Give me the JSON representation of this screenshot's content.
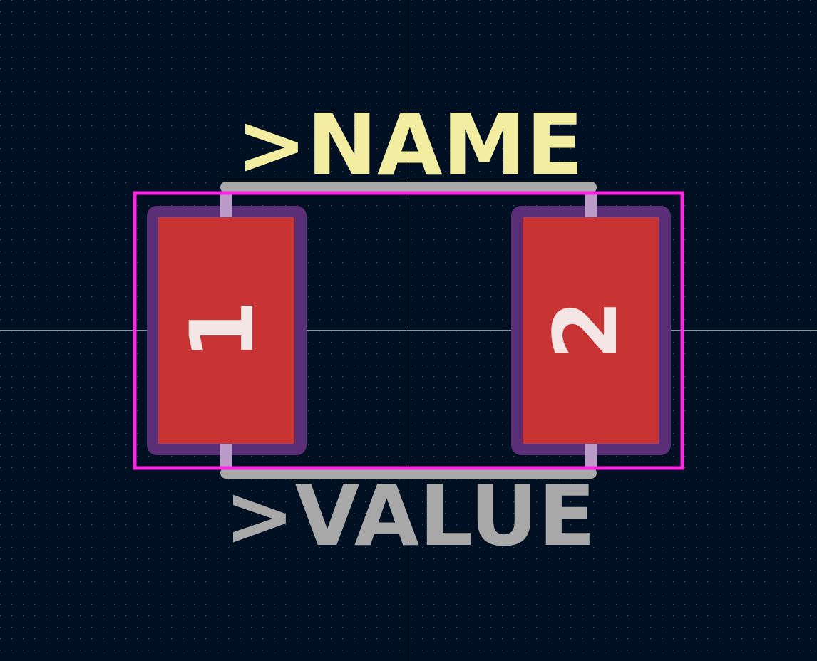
{
  "footprint": {
    "name_field": ">NAME",
    "value_field": ">VALUE",
    "pads": [
      {
        "number": "1"
      },
      {
        "number": "2"
      }
    ]
  },
  "colors": {
    "background": "#001023",
    "grid_dot": "#3b4a5c",
    "crosshair": "#8a93a0",
    "pad_copper": "#c83434",
    "pad_mask": "#5a2f78",
    "pad_number": "#f5e6e6",
    "courtyard": "#ff26e2",
    "fab_outline": "#a8a8a8",
    "name_text": "#f2eda1",
    "value_text": "#a8a8a8"
  }
}
